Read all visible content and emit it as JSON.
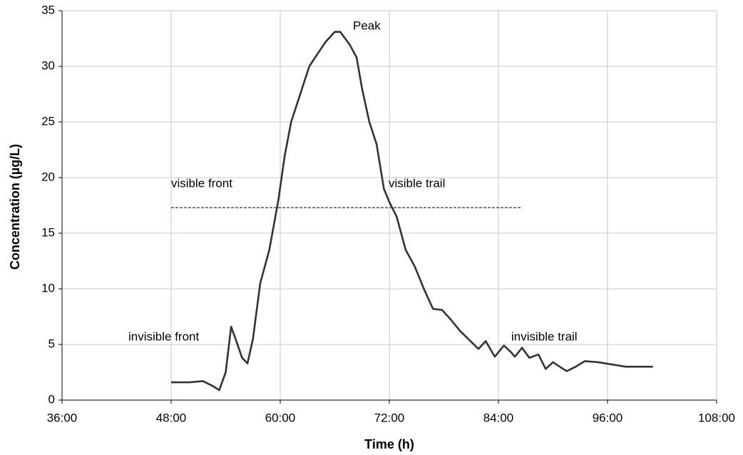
{
  "chart_data": {
    "type": "line",
    "x_label": "Time (h)",
    "y_label": "Concentration (µg/L)",
    "x": [
      48,
      50,
      51.5,
      52.5,
      53.3,
      54,
      54.6,
      55.3,
      55.8,
      56.4,
      57,
      57.8,
      58.8,
      59.8,
      60.5,
      61.2,
      62,
      63.2,
      64,
      65,
      66,
      66.6,
      67.6,
      68.4,
      69,
      69.8,
      70.6,
      71.4,
      72,
      72.8,
      73.8,
      74.8,
      75.8,
      76.8,
      77.8,
      78.8,
      79.8,
      81.8,
      82.6,
      83.6,
      84.6,
      85.4,
      85.8,
      86.6,
      87.4,
      88.4,
      89.2,
      90,
      91.5,
      92.5,
      93.5,
      95,
      96.5,
      98,
      101
    ],
    "series": [
      {
        "name": "Concentration",
        "color": "#333333",
        "values": [
          1.6,
          1.6,
          1.7,
          1.3,
          0.9,
          2.5,
          6.6,
          5.0,
          3.8,
          3.3,
          5.5,
          10.5,
          13.5,
          18,
          22,
          25,
          27,
          30,
          31,
          32.2,
          33.1,
          33.1,
          32,
          30.8,
          28,
          25,
          23,
          19,
          17.8,
          16.5,
          13.5,
          12,
          10,
          8.2,
          8.1,
          7.2,
          6.2,
          4.6,
          5.3,
          3.9,
          4.9,
          4.3,
          3.9,
          4.7,
          3.8,
          4.1,
          2.8,
          3.4,
          2.6,
          3.0,
          3.5,
          3.4,
          3.2,
          3.0,
          3.0
        ]
      }
    ],
    "reference_line": {
      "y": 17.3,
      "x": [
        48,
        86.5
      ]
    },
    "annotations": [
      "Peak",
      "visible front",
      "visible trail",
      "invisible front",
      "invisible trail"
    ],
    "xlim": [
      36,
      108
    ],
    "xticks": [
      {
        "value": 36,
        "label": "36:00"
      },
      {
        "value": 48,
        "label": "48:00"
      },
      {
        "value": 60,
        "label": "60:00"
      },
      {
        "value": 72,
        "label": "72:00"
      },
      {
        "value": 84,
        "label": "84:00"
      },
      {
        "value": 96,
        "label": "96:00"
      },
      {
        "value": 108,
        "label": "108:00"
      }
    ],
    "ylim": [
      0,
      35
    ],
    "yticks": [
      0,
      5,
      10,
      15,
      20,
      25,
      30,
      35
    ],
    "grid": true
  }
}
